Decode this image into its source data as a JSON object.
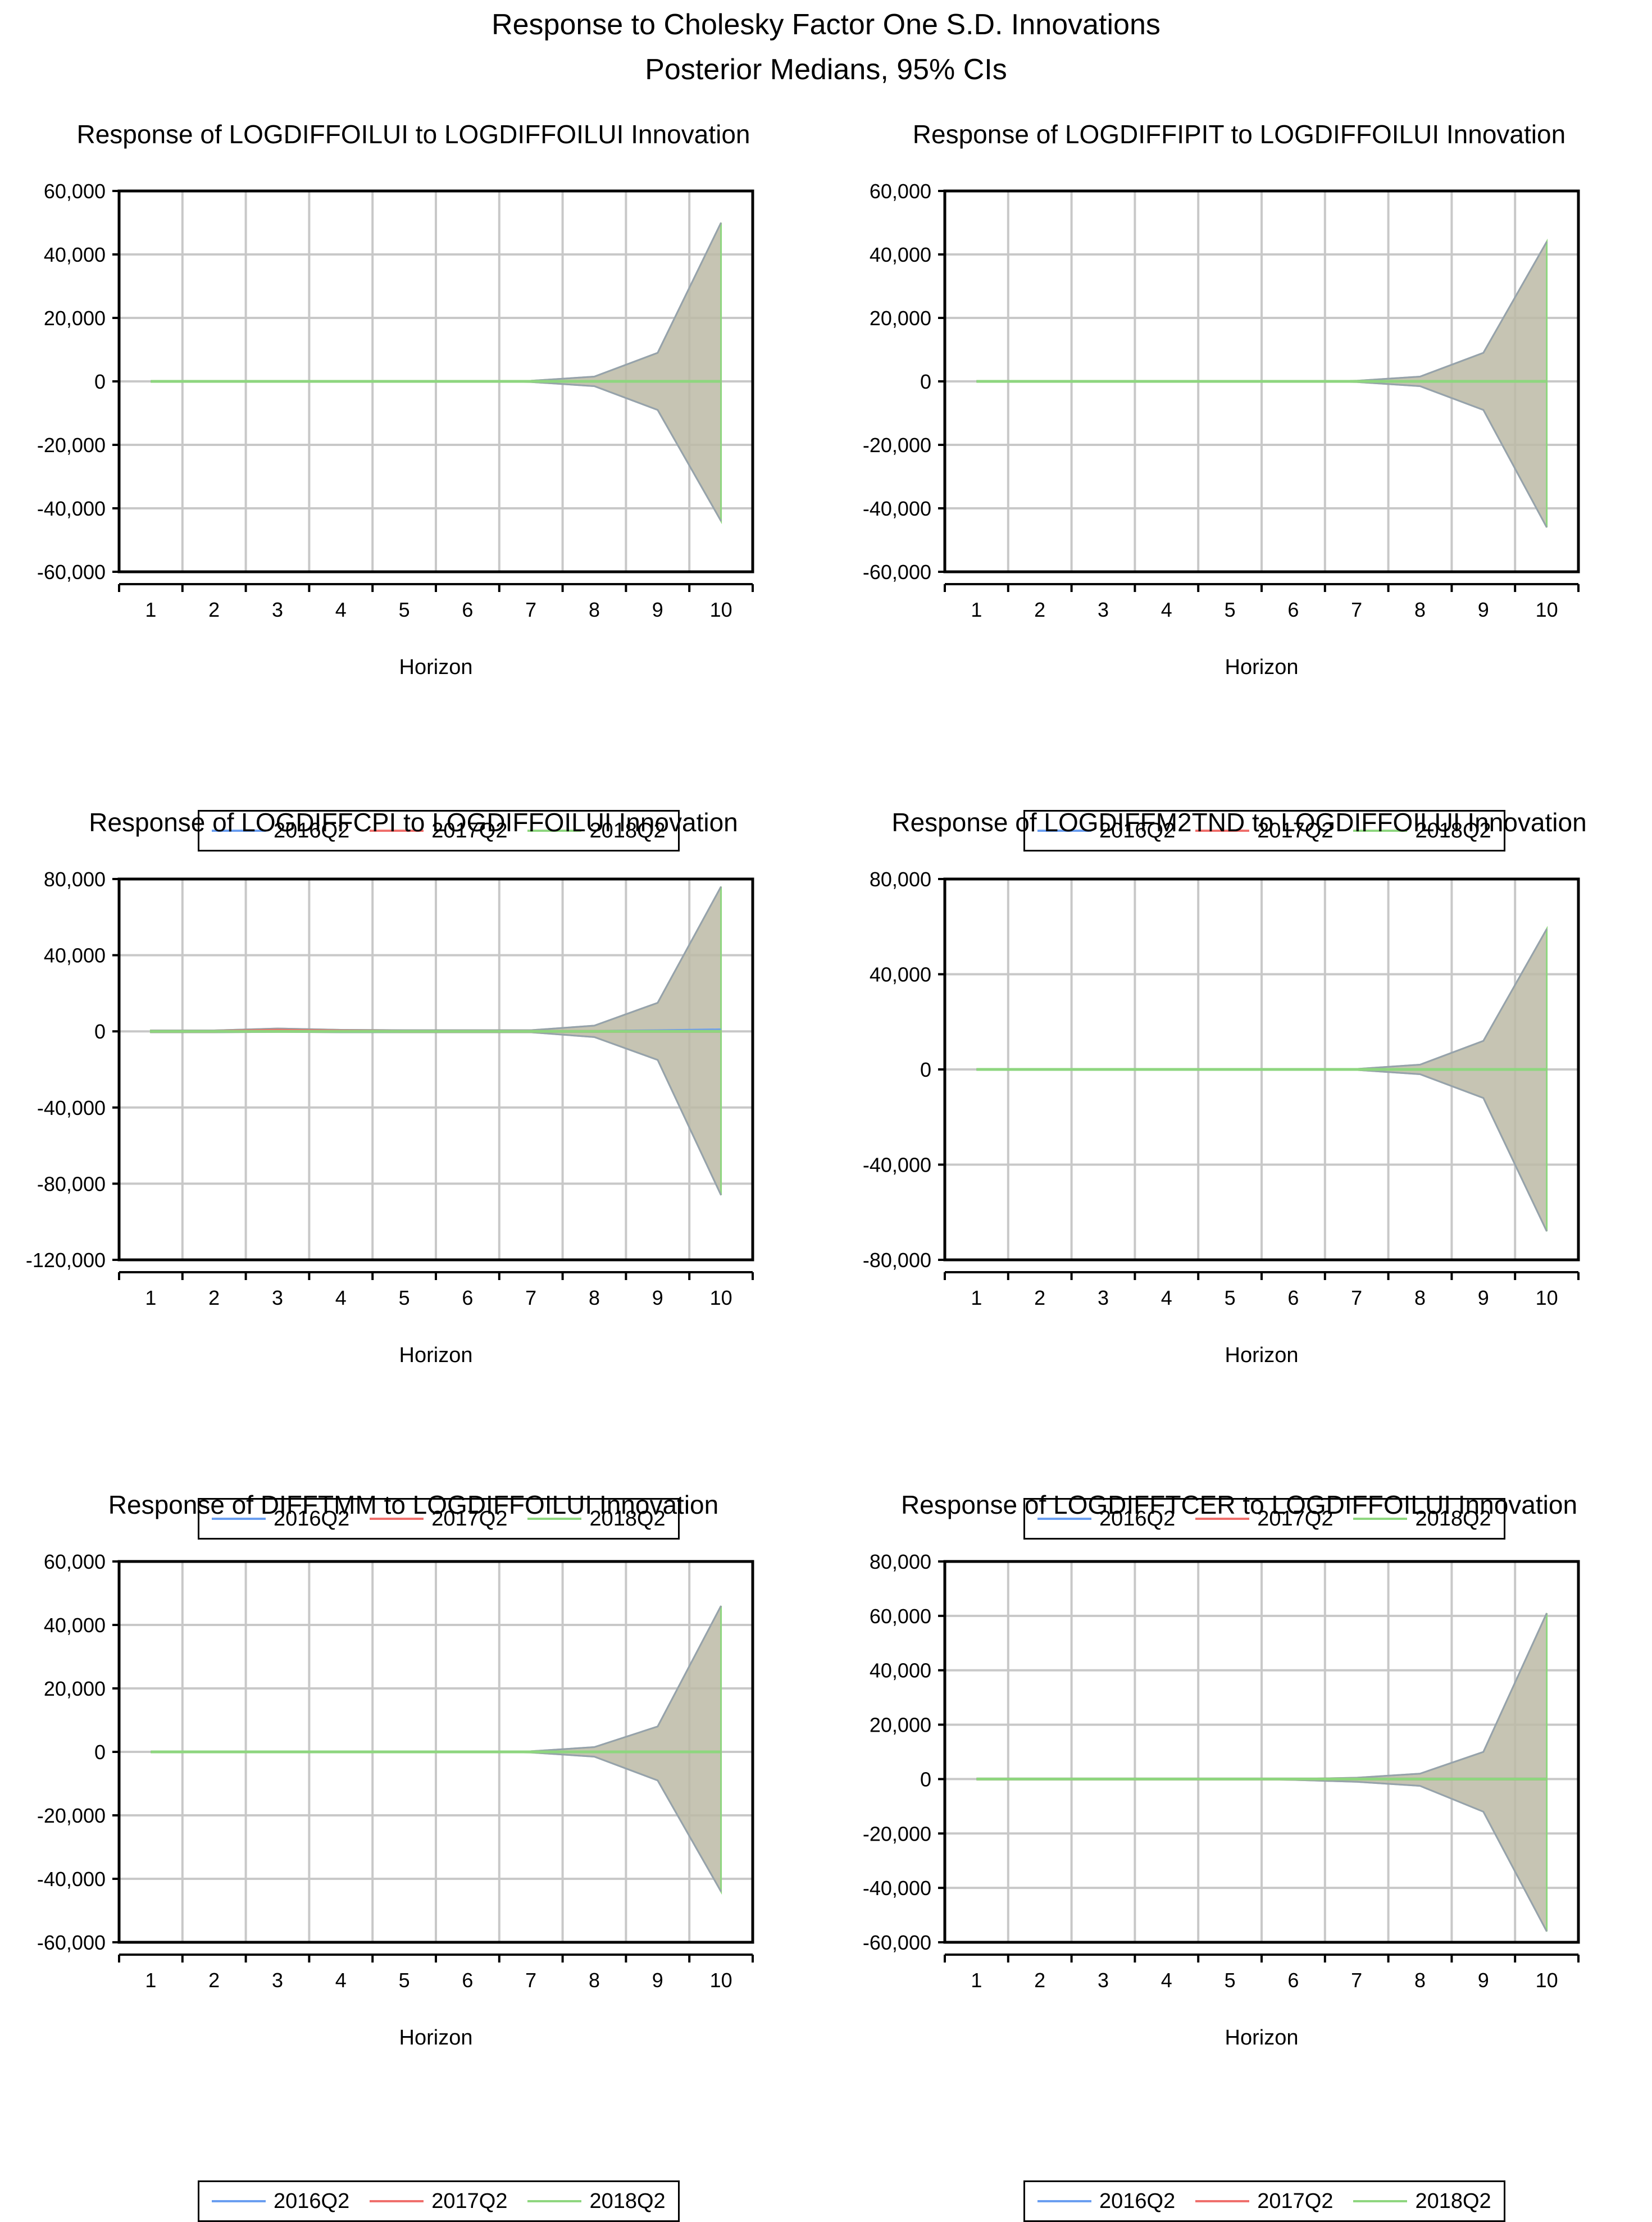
{
  "title": "Response to Cholesky Factor One S.D. Innovations",
  "subtitle": "Posterior Medians, 95% CIs",
  "colors": {
    "2016Q2": "#6a9ef0",
    "2017Q2": "#ef6f6c",
    "2018Q2": "#8ed67f",
    "band": "#bcbaa6",
    "grid": "#c8c8c8"
  },
  "legend": [
    "2016Q2",
    "2017Q2",
    "2018Q2"
  ],
  "chart_data": [
    {
      "type": "line",
      "title": "Response of LOGDIFFOILUI to LOGDIFFOILUI Innovation",
      "xlabel": "Horizon",
      "x": [
        1,
        2,
        3,
        4,
        5,
        6,
        7,
        8,
        9,
        10
      ],
      "ylim": [
        -60000,
        60000
      ],
      "yticks": [
        60000,
        40000,
        20000,
        0,
        -20000,
        -40000,
        -60000
      ],
      "ytick_labels": [
        "60,000",
        "40,000",
        "20,000",
        "0",
        "-20,000",
        "-40,000",
        "-60,000"
      ],
      "ci_upper": [
        0,
        0,
        0,
        0,
        0,
        0,
        200,
        1500,
        9000,
        50000
      ],
      "ci_lower": [
        0,
        0,
        0,
        0,
        0,
        0,
        -200,
        -1500,
        -9000,
        -44000
      ],
      "series": [
        {
          "name": "2016Q2",
          "values": [
            0,
            0,
            0,
            0,
            0,
            0,
            0,
            0,
            0,
            0
          ]
        },
        {
          "name": "2017Q2",
          "values": [
            0,
            0,
            0,
            0,
            0,
            0,
            0,
            0,
            0,
            0
          ]
        },
        {
          "name": "2018Q2",
          "values": [
            0,
            0,
            0,
            0,
            0,
            0,
            0,
            0,
            0,
            0
          ]
        }
      ]
    },
    {
      "type": "line",
      "title": "Response of LOGDIFFIPIT to LOGDIFFOILUI Innovation",
      "xlabel": "Horizon",
      "x": [
        1,
        2,
        3,
        4,
        5,
        6,
        7,
        8,
        9,
        10
      ],
      "ylim": [
        -60000,
        60000
      ],
      "yticks": [
        60000,
        40000,
        20000,
        0,
        -20000,
        -40000,
        -60000
      ],
      "ytick_labels": [
        "60,000",
        "40,000",
        "20,000",
        "0",
        "-20,000",
        "-40,000",
        "-60,000"
      ],
      "ci_upper": [
        0,
        0,
        0,
        0,
        0,
        0,
        200,
        1500,
        9000,
        44000
      ],
      "ci_lower": [
        0,
        0,
        0,
        0,
        0,
        0,
        -200,
        -1500,
        -9000,
        -46000
      ],
      "series": [
        {
          "name": "2016Q2",
          "values": [
            0,
            0,
            0,
            0,
            0,
            0,
            0,
            0,
            0,
            0
          ]
        },
        {
          "name": "2017Q2",
          "values": [
            0,
            0,
            0,
            0,
            0,
            0,
            0,
            0,
            0,
            0
          ]
        },
        {
          "name": "2018Q2",
          "values": [
            0,
            0,
            0,
            0,
            0,
            0,
            0,
            0,
            0,
            0
          ]
        }
      ]
    },
    {
      "type": "line",
      "title": "Response of LOGDIFFCPI to LOGDIFFOILUI Innovation",
      "xlabel": "Horizon",
      "x": [
        1,
        2,
        3,
        4,
        5,
        6,
        7,
        8,
        9,
        10
      ],
      "ylim": [
        -120000,
        80000
      ],
      "yticks": [
        80000,
        40000,
        0,
        -40000,
        -80000,
        -120000
      ],
      "ytick_labels": [
        "80,000",
        "40,000",
        "0",
        "-40,000",
        "-80,000",
        "-120,000"
      ],
      "ci_upper": [
        500,
        500,
        1500,
        800,
        600,
        600,
        600,
        3000,
        15000,
        76000
      ],
      "ci_lower": [
        -500,
        -500,
        -300,
        -500,
        -500,
        -500,
        -500,
        -3000,
        -15000,
        -86000
      ],
      "series": [
        {
          "name": "2016Q2",
          "values": [
            0,
            0,
            200,
            0,
            0,
            0,
            0,
            0,
            300,
            800
          ]
        },
        {
          "name": "2017Q2",
          "values": [
            0,
            0,
            600,
            200,
            0,
            0,
            0,
            0,
            0,
            0
          ]
        },
        {
          "name": "2018Q2",
          "values": [
            0,
            0,
            0,
            0,
            0,
            0,
            0,
            0,
            0,
            0
          ]
        }
      ]
    },
    {
      "type": "line",
      "title": "Response of LOGDIFFM2TND to LOGDIFFOILUI Innovation",
      "xlabel": "Horizon",
      "x": [
        1,
        2,
        3,
        4,
        5,
        6,
        7,
        8,
        9,
        10
      ],
      "ylim": [
        -80000,
        80000
      ],
      "yticks": [
        80000,
        40000,
        0,
        -40000,
        -80000
      ],
      "ytick_labels": [
        "80,000",
        "40,000",
        "0",
        "-40,000",
        "-80,000"
      ],
      "ci_upper": [
        0,
        0,
        0,
        0,
        0,
        0,
        200,
        2000,
        12000,
        59000
      ],
      "ci_lower": [
        0,
        0,
        0,
        0,
        0,
        0,
        -200,
        -2000,
        -12000,
        -68000
      ],
      "series": [
        {
          "name": "2016Q2",
          "values": [
            0,
            0,
            0,
            0,
            0,
            0,
            0,
            0,
            0,
            0
          ]
        },
        {
          "name": "2017Q2",
          "values": [
            0,
            0,
            0,
            0,
            0,
            0,
            0,
            0,
            0,
            0
          ]
        },
        {
          "name": "2018Q2",
          "values": [
            0,
            0,
            0,
            0,
            0,
            0,
            0,
            0,
            0,
            0
          ]
        }
      ]
    },
    {
      "type": "line",
      "title": "Response of DIFFTMM to LOGDIFFOILUI Innovation",
      "xlabel": "Horizon",
      "x": [
        1,
        2,
        3,
        4,
        5,
        6,
        7,
        8,
        9,
        10
      ],
      "ylim": [
        -60000,
        60000
      ],
      "yticks": [
        60000,
        40000,
        20000,
        0,
        -20000,
        -40000,
        -60000
      ],
      "ytick_labels": [
        "60,000",
        "40,000",
        "20,000",
        "0",
        "-20,000",
        "-40,000",
        "-60,000"
      ],
      "ci_upper": [
        0,
        0,
        0,
        0,
        0,
        0,
        200,
        1500,
        8000,
        46000
      ],
      "ci_lower": [
        0,
        0,
        0,
        0,
        0,
        0,
        -200,
        -1500,
        -9000,
        -44000
      ],
      "series": [
        {
          "name": "2016Q2",
          "values": [
            0,
            0,
            0,
            0,
            0,
            0,
            0,
            0,
            0,
            0
          ]
        },
        {
          "name": "2017Q2",
          "values": [
            0,
            0,
            0,
            0,
            0,
            0,
            0,
            0,
            0,
            0
          ]
        },
        {
          "name": "2018Q2",
          "values": [
            0,
            0,
            0,
            0,
            0,
            0,
            0,
            0,
            0,
            0
          ]
        }
      ]
    },
    {
      "type": "line",
      "title": "Response of LOGDIFFTCER to LOGDIFFOILUI Innovation",
      "xlabel": "Horizon",
      "x": [
        1,
        2,
        3,
        4,
        5,
        6,
        7,
        8,
        9,
        10
      ],
      "ylim": [
        -60000,
        80000
      ],
      "yticks": [
        80000,
        60000,
        40000,
        20000,
        0,
        -20000,
        -40000,
        -60000
      ],
      "ytick_labels": [
        "80,000",
        "60,000",
        "40,000",
        "20,000",
        "0",
        "-20,000",
        "-40,000",
        "-60,000"
      ],
      "ci_upper": [
        0,
        0,
        0,
        0,
        0,
        0,
        500,
        2000,
        10000,
        61000
      ],
      "ci_lower": [
        0,
        0,
        0,
        0,
        0,
        -300,
        -1000,
        -2500,
        -12000,
        -56000
      ],
      "series": [
        {
          "name": "2016Q2",
          "values": [
            0,
            0,
            0,
            0,
            0,
            0,
            0,
            0,
            0,
            0
          ]
        },
        {
          "name": "2017Q2",
          "values": [
            0,
            0,
            0,
            0,
            0,
            0,
            0,
            0,
            0,
            0
          ]
        },
        {
          "name": "2018Q2",
          "values": [
            0,
            0,
            0,
            0,
            0,
            0,
            0,
            0,
            0,
            0
          ]
        }
      ]
    }
  ]
}
